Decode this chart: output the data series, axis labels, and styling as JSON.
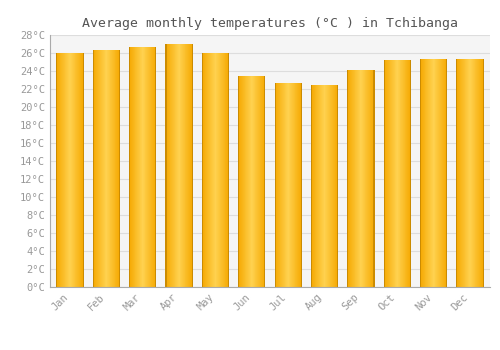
{
  "title": "Average monthly temperatures (°C ) in Tchibanga",
  "months": [
    "Jan",
    "Feb",
    "Mar",
    "Apr",
    "May",
    "Jun",
    "Jul",
    "Aug",
    "Sep",
    "Oct",
    "Nov",
    "Dec"
  ],
  "values": [
    26.0,
    26.3,
    26.7,
    27.0,
    26.0,
    23.5,
    22.7,
    22.4,
    24.1,
    25.2,
    25.3,
    25.3
  ],
  "ylim": [
    0,
    28
  ],
  "yticks": [
    0,
    2,
    4,
    6,
    8,
    10,
    12,
    14,
    16,
    18,
    20,
    22,
    24,
    26,
    28
  ],
  "bar_color_left": "#F5A800",
  "bar_color_center": "#FFD060",
  "bar_color_right": "#F5A800",
  "bar_border_color": "#B07800",
  "background_color": "#FFFFFF",
  "plot_bg_color": "#F5F5F5",
  "grid_color": "#DDDDDD",
  "title_fontsize": 9.5,
  "tick_fontsize": 7.5,
  "title_color": "#555555",
  "tick_color": "#999999"
}
